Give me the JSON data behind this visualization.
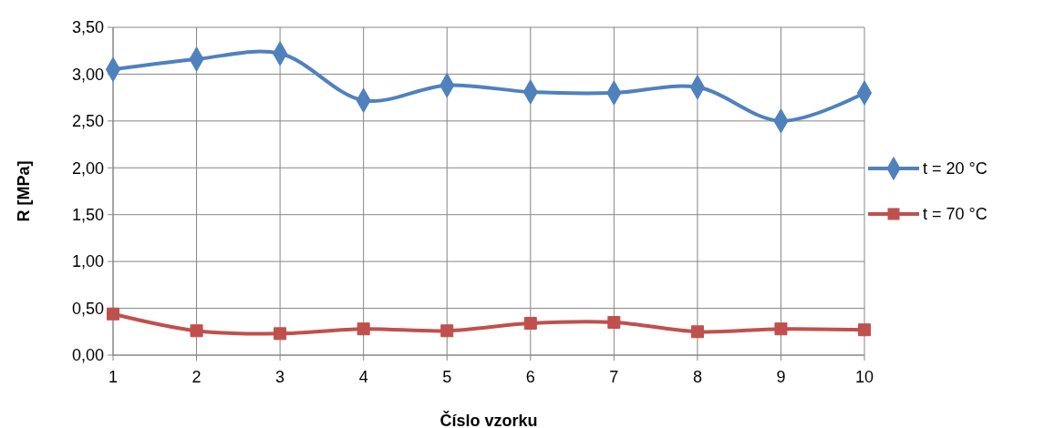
{
  "chart_data": {
    "type": "line",
    "xlabel": "Číslo vzorku",
    "ylabel": "R [MPa]",
    "categories": [
      "1",
      "2",
      "3",
      "4",
      "5",
      "6",
      "7",
      "8",
      "9",
      "10"
    ],
    "series": [
      {
        "name": "t = 20 °C",
        "color": "#4f81bd",
        "marker": "diamond",
        "values": [
          3.05,
          3.16,
          3.22,
          2.72,
          2.88,
          2.81,
          2.8,
          2.86,
          2.5,
          2.8
        ]
      },
      {
        "name": "t = 70 °C",
        "color": "#c0504d",
        "marker": "square",
        "values": [
          0.44,
          0.26,
          0.23,
          0.28,
          0.26,
          0.34,
          0.35,
          0.25,
          0.28,
          0.27
        ]
      }
    ],
    "ylim": [
      0,
      3.5
    ],
    "yticks": [
      {
        "value": 0,
        "label": "0,00"
      },
      {
        "value": 0.5,
        "label": "0,50"
      },
      {
        "value": 1,
        "label": "1,00"
      },
      {
        "value": 1.5,
        "label": "1,50"
      },
      {
        "value": 2,
        "label": "2,00"
      },
      {
        "value": 2.5,
        "label": "2,50"
      },
      {
        "value": 3,
        "label": "3,00"
      },
      {
        "value": 3.5,
        "label": "3,50"
      }
    ],
    "grid": true,
    "legend": "right",
    "line_style": "solid"
  }
}
